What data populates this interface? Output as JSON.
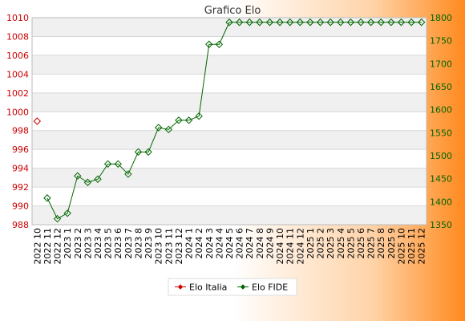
{
  "chart_data": {
    "type": "line",
    "title": "Grafico Elo",
    "categories": [
      "2022 10",
      "2022 11",
      "2022 12",
      "2023 1",
      "2023 2",
      "2023 3",
      "2023 4",
      "2023 5",
      "2023 6",
      "2023 7",
      "2023 8",
      "2023 9",
      "2023 10",
      "2023 11",
      "2023 12",
      "2024 1",
      "2024 2",
      "2024 3",
      "2024 4",
      "2024 5",
      "2024 6",
      "2024 7",
      "2024 8",
      "2024 9",
      "2024 10",
      "2024 11",
      "2024 12",
      "2025 1",
      "2025 2",
      "2025 3",
      "2025 4",
      "2025 5",
      "2025 6",
      "2025 7",
      "2025 8",
      "2025 9",
      "2025 10",
      "2025 11",
      "2025 12"
    ],
    "left_axis": {
      "range": [
        988,
        1010
      ],
      "ticks": [
        988,
        990,
        992,
        994,
        996,
        998,
        1000,
        1002,
        1004,
        1006,
        1008,
        1010
      ],
      "color": "#cc0000"
    },
    "right_axis": {
      "range": [
        1350,
        1800
      ],
      "ticks": [
        1350,
        1400,
        1450,
        1500,
        1550,
        1600,
        1650,
        1700,
        1750,
        1800
      ],
      "color": "#006600"
    },
    "series": [
      {
        "name": "Elo Italia",
        "axis": "left",
        "color": "#cc0000",
        "values": [
          999,
          null,
          null,
          null,
          null,
          null,
          null,
          null,
          null,
          null,
          null,
          null,
          null,
          null,
          null,
          null,
          null,
          null,
          null,
          null,
          null,
          null,
          null,
          null,
          null,
          null,
          null,
          null,
          null,
          null,
          null,
          null,
          null,
          null,
          null,
          null,
          null,
          null,
          null
        ]
      },
      {
        "name": "Elo FIDE",
        "axis": "right",
        "color": "#006600",
        "values": [
          null,
          1408,
          1363,
          1375,
          1456,
          1442,
          1449,
          1482,
          1482,
          1460,
          1508,
          1508,
          1561,
          1557,
          1577,
          1577,
          1586,
          1742,
          1742,
          1790,
          1790,
          1790,
          1790,
          1790,
          1790,
          1790,
          1790,
          1790,
          1790,
          1790,
          1790,
          1790,
          1790,
          1790,
          1790,
          1790,
          1790,
          1790,
          1790
        ]
      }
    ],
    "grid": true,
    "legend_position": "bottom-center"
  }
}
